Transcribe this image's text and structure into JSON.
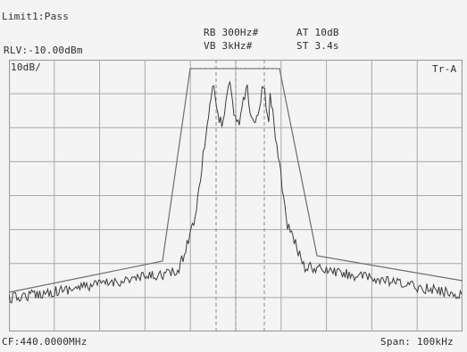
{
  "header": {
    "limit_status": "Limit1:Pass",
    "ref_level": "RLV:-10.00dBm",
    "rbw": "RB 300Hz#",
    "vbw": "VB 3kHz#",
    "attenuation": "AT 10dB",
    "sweep_time": "ST 3.4s"
  },
  "graticule": {
    "scale_label": "10dB/",
    "trace_label": "Tr-A"
  },
  "footer": {
    "center_freq": "CF:440.0000MHz",
    "span": "Span: 100kHz"
  },
  "colors": {
    "background": "#f4f4f4",
    "grid": "#a8a8a8",
    "trace": "#3c3c3c",
    "limit_line": "#6e6e6e"
  }
}
